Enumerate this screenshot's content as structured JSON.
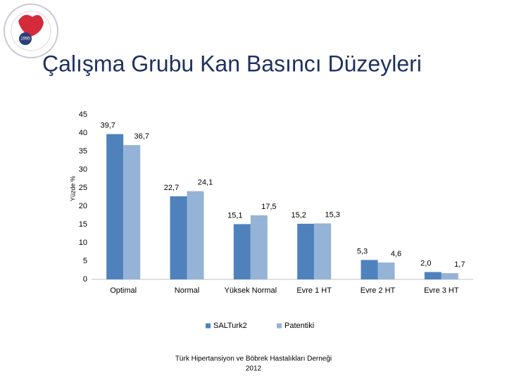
{
  "chart_data": {
    "type": "bar",
    "title": "Çalışma Grubu Kan Basıncı Düzeyleri",
    "y_label": "Yüzde %",
    "logo_text": "1995",
    "footer": [
      "Türk Hipertansiyon ve Böbrek Hastalıkları Derneği",
      "2012"
    ],
    "categories": [
      "Optimal",
      "Normal",
      "Yüksek Normal",
      "Evre 1 HT",
      "Evre 2 HT",
      "Evre 3 HT"
    ],
    "series": [
      {
        "name": "SALTurk2",
        "color": "#4f81bd",
        "values": [
          39.7,
          22.7,
          15.1,
          15.2,
          5.3,
          2.0
        ],
        "value_labels": [
          "39,7",
          "22,7",
          "15,1",
          "15,2",
          "5,3",
          "2,0"
        ]
      },
      {
        "name": "Patentiki",
        "color": "#95b3d7",
        "values": [
          36.7,
          24.1,
          17.5,
          15.3,
          4.6,
          1.7
        ],
        "value_labels": [
          "36,7",
          "24,1",
          "17,5",
          "15,3",
          "4,6",
          "1,7"
        ]
      }
    ],
    "ylim": [
      0,
      45
    ],
    "yticks": [
      0,
      5,
      10,
      15,
      20,
      25,
      30,
      35,
      40,
      45
    ],
    "grid": false,
    "legend": "bottom"
  }
}
